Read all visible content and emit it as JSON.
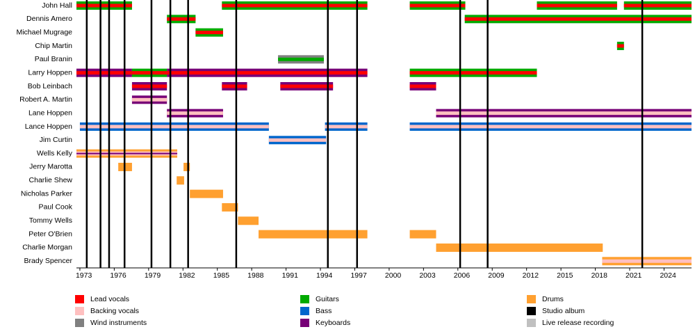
{
  "chart_data": {
    "type": "timeline",
    "xlim": [
      1972.7,
      2026.4
    ],
    "xticks": [
      1973,
      1976,
      1979,
      1982,
      1985,
      1988,
      1991,
      1994,
      1997,
      2000,
      2003,
      2006,
      2009,
      2012,
      2015,
      2018,
      2021,
      2024
    ],
    "legend": [
      {
        "name": "Lead vocals",
        "color": "#ff0000"
      },
      {
        "name": "Backing vocals",
        "color": "#ffc0c0"
      },
      {
        "name": "Wind instruments",
        "color": "#808080"
      },
      {
        "name": "Guitars",
        "color": "#00aa00"
      },
      {
        "name": "Bass",
        "color": "#0066cc"
      },
      {
        "name": "Keyboards",
        "color": "#770077"
      },
      {
        "name": "Drums",
        "color": "#ffa030"
      },
      {
        "name": "Studio album",
        "color": "#000000"
      },
      {
        "name": "Live release recording",
        "color": "#c0c0c0"
      }
    ],
    "studio_albums": [
      1973.6,
      1974.8,
      1975.55,
      1976.9,
      1979.25,
      1980.9,
      1982.45,
      1986.65,
      1994.65,
      1997.2,
      2006.2,
      2008.6,
      2022.1
    ],
    "rows": [
      {
        "name": "John Hall",
        "bars": [
          {
            "start": 1972.7,
            "end": 1977.55,
            "roles": [
              "Guitars",
              "Lead vocals"
            ]
          },
          {
            "start": 1985.4,
            "end": 1998.1,
            "roles": [
              "Guitars",
              "Lead vocals"
            ]
          },
          {
            "start": 2001.8,
            "end": 2006.65,
            "roles": [
              "Guitars",
              "Lead vocals"
            ]
          },
          {
            "start": 2012.9,
            "end": 2019.9,
            "roles": [
              "Guitars",
              "Lead vocals"
            ]
          },
          {
            "start": 2020.5,
            "end": 2026.4,
            "roles": [
              "Guitars",
              "Lead vocals"
            ]
          }
        ]
      },
      {
        "name": "Dennis Amero",
        "bars": [
          {
            "start": 1980.6,
            "end": 1983.1,
            "roles": [
              "Guitars",
              "Lead vocals"
            ]
          },
          {
            "start": 2006.6,
            "end": 2026.4,
            "roles": [
              "Guitars",
              "Lead vocals"
            ]
          }
        ]
      },
      {
        "name": "Michael Mugrage",
        "bars": [
          {
            "start": 1983.1,
            "end": 1985.5,
            "roles": [
              "Guitars",
              "Lead vocals"
            ]
          }
        ]
      },
      {
        "name": "Chip Martin",
        "bars": [
          {
            "start": 2019.9,
            "end": 2020.5,
            "roles": [
              "Guitars",
              "Lead vocals"
            ]
          }
        ]
      },
      {
        "name": "Paul Branin",
        "bars": [
          {
            "start": 1990.3,
            "end": 1994.3,
            "roles": [
              "Wind instruments",
              "Guitars"
            ]
          }
        ]
      },
      {
        "name": "Larry Hoppen",
        "bars": [
          {
            "start": 1972.7,
            "end": 1977.55,
            "roles": [
              "Keyboards",
              "Lead vocals"
            ]
          },
          {
            "start": 1977.55,
            "end": 1980.6,
            "roles": [
              "Guitars",
              "Lead vocals"
            ]
          },
          {
            "start": 1980.6,
            "end": 1998.1,
            "roles": [
              "Keyboards",
              "Lead vocals"
            ]
          },
          {
            "start": 2001.8,
            "end": 2012.9,
            "roles": [
              "Guitars",
              "Lead vocals"
            ]
          }
        ]
      },
      {
        "name": "Bob Leinbach",
        "bars": [
          {
            "start": 1977.55,
            "end": 1980.6,
            "roles": [
              "Keyboards",
              "Lead vocals"
            ]
          },
          {
            "start": 1985.4,
            "end": 1987.6,
            "roles": [
              "Keyboards",
              "Lead vocals"
            ]
          },
          {
            "start": 1990.5,
            "end": 1995.1,
            "roles": [
              "Keyboards",
              "Lead vocals"
            ]
          },
          {
            "start": 2001.8,
            "end": 2004.1,
            "roles": [
              "Keyboards",
              "Lead vocals"
            ]
          }
        ]
      },
      {
        "name": "Robert A. Martin",
        "bars": [
          {
            "start": 1977.55,
            "end": 1980.6,
            "roles": [
              "Keyboards",
              "Backing vocals"
            ]
          }
        ]
      },
      {
        "name": "Lane Hoppen",
        "bars": [
          {
            "start": 1980.6,
            "end": 1985.5,
            "roles": [
              "Keyboards",
              "Backing vocals"
            ]
          },
          {
            "start": 2004.1,
            "end": 2026.4,
            "roles": [
              "Keyboards",
              "Backing vocals"
            ]
          }
        ]
      },
      {
        "name": "Lance Hoppen",
        "bars": [
          {
            "start": 1973.0,
            "end": 1989.5,
            "roles": [
              "Bass",
              "Backing vocals"
            ]
          },
          {
            "start": 1994.4,
            "end": 1998.1,
            "roles": [
              "Bass",
              "Backing vocals"
            ]
          },
          {
            "start": 2001.8,
            "end": 2026.4,
            "roles": [
              "Bass",
              "Backing vocals"
            ]
          }
        ]
      },
      {
        "name": "Jim Curtin",
        "bars": [
          {
            "start": 1989.5,
            "end": 1994.5,
            "roles": [
              "Bass",
              "Backing vocals"
            ]
          }
        ]
      },
      {
        "name": "Wells Kelly",
        "bars": [
          {
            "start": 1972.7,
            "end": 1981.5,
            "roles": [
              "Drums",
              "Backing vocals",
              "Keyboards"
            ]
          }
        ]
      },
      {
        "name": "Jerry Marotta",
        "bars": [
          {
            "start": 1976.35,
            "end": 1977.55,
            "roles": [
              "Drums"
            ]
          },
          {
            "start": 1982.05,
            "end": 1982.6,
            "roles": [
              "Drums"
            ]
          }
        ]
      },
      {
        "name": "Charlie Shew",
        "bars": [
          {
            "start": 1981.45,
            "end": 1982.1,
            "roles": [
              "Drums"
            ]
          }
        ]
      },
      {
        "name": "Nicholas Parker",
        "bars": [
          {
            "start": 1982.6,
            "end": 1985.5,
            "roles": [
              "Drums"
            ]
          }
        ]
      },
      {
        "name": "Paul Cook",
        "bars": [
          {
            "start": 1985.4,
            "end": 1986.8,
            "roles": [
              "Drums"
            ]
          }
        ]
      },
      {
        "name": "Tommy Wells",
        "bars": [
          {
            "start": 1986.8,
            "end": 1988.6,
            "roles": [
              "Drums"
            ]
          }
        ]
      },
      {
        "name": "Peter O'Brien",
        "bars": [
          {
            "start": 1988.6,
            "end": 1998.1,
            "roles": [
              "Drums"
            ]
          },
          {
            "start": 2001.8,
            "end": 2004.1,
            "roles": [
              "Drums"
            ]
          }
        ]
      },
      {
        "name": "Charlie Morgan",
        "bars": [
          {
            "start": 2004.1,
            "end": 2018.65,
            "roles": [
              "Drums"
            ]
          }
        ]
      },
      {
        "name": "Brady Spencer",
        "bars": [
          {
            "start": 2018.6,
            "end": 2026.4,
            "roles": [
              "Drums",
              "Backing vocals"
            ]
          }
        ]
      }
    ]
  }
}
